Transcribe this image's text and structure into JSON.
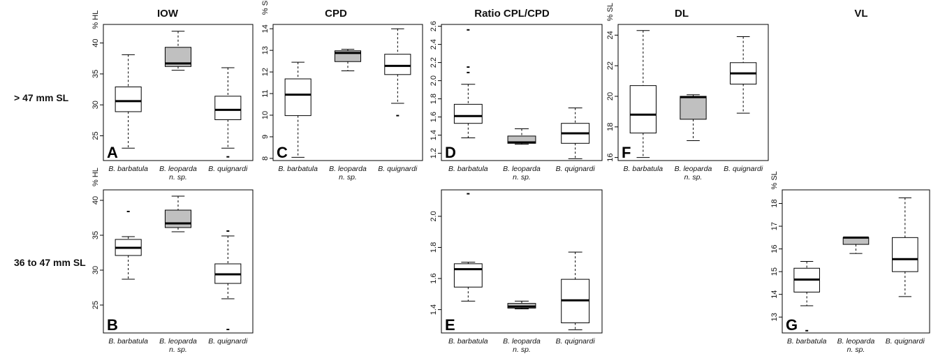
{
  "column_titles": [
    "IOW",
    "CPD",
    "Ratio CPL/CPD",
    "DL",
    "VL"
  ],
  "row_labels": [
    "> 47 mm SL",
    "36 to 47 mm SL"
  ],
  "category_lines": [
    [
      "B. barbatula"
    ],
    [
      "B. leoparda",
      "n. sp."
    ],
    [
      "B. quignardi"
    ]
  ],
  "colors": {
    "highlight_box": "#c0c0c0",
    "box": "#ffffff",
    "stroke": "#000000"
  },
  "chart_data": [
    {
      "panel": "A",
      "type": "boxplot",
      "title": "IOW",
      "ylabel": "% HL",
      "ylim": [
        21,
        43
      ],
      "yticks": [
        25,
        30,
        35,
        40
      ],
      "top_tick_prefix_label": true,
      "categories": [
        "B. barbatula",
        "B. leoparda n. sp.",
        "B. quignardi"
      ],
      "boxes": [
        {
          "whisker_low": 23.0,
          "q1": 28.9,
          "median": 30.6,
          "q3": 32.9,
          "whisker_high": 38.1,
          "outliers": []
        },
        {
          "whisker_low": 35.6,
          "q1": 36.2,
          "median": 36.7,
          "q3": 39.3,
          "whisker_high": 41.9,
          "outliers": []
        },
        {
          "whisker_low": 23.0,
          "q1": 27.6,
          "median": 29.2,
          "q3": 31.4,
          "whisker_high": 36.0,
          "outliers": [
            21.6
          ]
        }
      ]
    },
    {
      "panel": "C",
      "type": "boxplot",
      "title": "CPD",
      "ylabel": "% SL",
      "ylim": [
        7.9,
        14.2
      ],
      "yticks": [
        8,
        9,
        10,
        11,
        12,
        13,
        14
      ],
      "top_tick_prefix_label": true,
      "categories": [
        "B. barbatula",
        "B. leoparda n. sp.",
        "B. quignardi"
      ],
      "boxes": [
        {
          "whisker_low": 8.05,
          "q1": 9.98,
          "median": 10.95,
          "q3": 11.68,
          "whisker_high": 12.45,
          "outliers": []
        },
        {
          "whisker_low": 12.05,
          "q1": 12.48,
          "median": 12.88,
          "q3": 12.98,
          "whisker_high": 13.05,
          "outliers": []
        },
        {
          "whisker_low": 10.55,
          "q1": 11.88,
          "median": 12.28,
          "q3": 12.82,
          "whisker_high": 14.0,
          "outliers": [
            9.98
          ]
        }
      ]
    },
    {
      "panel": "D",
      "type": "boxplot",
      "title": "Ratio CPL/CPD",
      "ylabel": "",
      "ylim": [
        1.12,
        2.62
      ],
      "yticks": [
        1.2,
        1.4,
        1.6,
        1.8,
        2.0,
        2.2,
        2.4,
        2.6
      ],
      "top_tick_prefix_label": false,
      "categories": [
        "B. barbatula",
        "B. leoparda n. sp.",
        "B. quignardi"
      ],
      "boxes": [
        {
          "whisker_low": 1.37,
          "q1": 1.53,
          "median": 1.61,
          "q3": 1.74,
          "whisker_high": 1.96,
          "outliers": [
            2.09,
            2.15,
            2.56
          ]
        },
        {
          "whisker_low": 1.3,
          "q1": 1.31,
          "median": 1.32,
          "q3": 1.39,
          "whisker_high": 1.47,
          "outliers": []
        },
        {
          "whisker_low": 1.14,
          "q1": 1.31,
          "median": 1.42,
          "q3": 1.53,
          "whisker_high": 1.7,
          "outliers": []
        }
      ]
    },
    {
      "panel": "F",
      "type": "boxplot",
      "title": "DL",
      "ylabel": "% SL",
      "ylim": [
        15.8,
        24.7
      ],
      "yticks": [
        16,
        18,
        20,
        22,
        24
      ],
      "top_tick_prefix_label": true,
      "categories": [
        "B. barbatula",
        "B. leoparda n. sp.",
        "B. quignardi"
      ],
      "boxes": [
        {
          "whisker_low": 16.0,
          "q1": 17.6,
          "median": 18.8,
          "q3": 20.7,
          "whisker_high": 24.3,
          "outliers": []
        },
        {
          "whisker_low": 17.1,
          "q1": 18.5,
          "median": 19.95,
          "q3": 20.0,
          "whisker_high": 20.1,
          "outliers": []
        },
        {
          "whisker_low": 18.9,
          "q1": 20.8,
          "median": 21.5,
          "q3": 22.2,
          "whisker_high": 23.9,
          "outliers": []
        }
      ]
    },
    {
      "panel": "B",
      "type": "boxplot",
      "title": "",
      "ylabel": "% HL",
      "ylim": [
        21,
        41.5
      ],
      "yticks": [
        25,
        30,
        35,
        40
      ],
      "top_tick_prefix_label": true,
      "categories": [
        "B. barbatula",
        "B. leoparda n. sp.",
        "B. quignardi"
      ],
      "boxes": [
        {
          "whisker_low": 28.7,
          "q1": 32.1,
          "median": 33.2,
          "q3": 34.4,
          "whisker_high": 34.8,
          "outliers": [
            38.4
          ]
        },
        {
          "whisker_low": 35.5,
          "q1": 36.1,
          "median": 36.7,
          "q3": 38.6,
          "whisker_high": 40.6,
          "outliers": []
        },
        {
          "whisker_low": 25.9,
          "q1": 28.1,
          "median": 29.4,
          "q3": 30.9,
          "whisker_high": 34.9,
          "outliers": [
            35.6,
            21.5
          ]
        }
      ]
    },
    {
      "panel": "E",
      "type": "boxplot",
      "title": "",
      "ylabel": "",
      "ylim": [
        1.25,
        2.17
      ],
      "yticks": [
        1.4,
        1.6,
        1.8,
        2.0
      ],
      "top_tick_prefix_label": false,
      "categories": [
        "B. barbatula",
        "B. leoparda n. sp.",
        "B. quignardi"
      ],
      "boxes": [
        {
          "whisker_low": 1.455,
          "q1": 1.545,
          "median": 1.66,
          "q3": 1.695,
          "whisker_high": 1.705,
          "outliers": [
            2.145
          ]
        },
        {
          "whisker_low": 1.405,
          "q1": 1.41,
          "median": 1.42,
          "q3": 1.44,
          "whisker_high": 1.455,
          "outliers": []
        },
        {
          "whisker_low": 1.27,
          "q1": 1.315,
          "median": 1.46,
          "q3": 1.595,
          "whisker_high": 1.77,
          "outliers": []
        }
      ]
    },
    {
      "panel": "G",
      "type": "boxplot",
      "title": "",
      "ylabel": "% SL",
      "ylim": [
        12.3,
        18.6
      ],
      "yticks": [
        13,
        14,
        15,
        16,
        17,
        18
      ],
      "top_tick_prefix_label": true,
      "categories": [
        "B. barbatula",
        "B. leoparda n. sp.",
        "B. quignardi"
      ],
      "boxes": [
        {
          "whisker_low": 13.5,
          "q1": 14.1,
          "median": 14.65,
          "q3": 15.15,
          "whisker_high": 15.45,
          "outliers": [
            12.4
          ]
        },
        {
          "whisker_low": 15.8,
          "q1": 16.2,
          "median": 16.5,
          "q3": 16.5,
          "whisker_high": 16.5,
          "outliers": []
        },
        {
          "whisker_low": 13.9,
          "q1": 15.0,
          "median": 15.55,
          "q3": 16.5,
          "whisker_high": 18.25,
          "outliers": []
        }
      ]
    }
  ]
}
